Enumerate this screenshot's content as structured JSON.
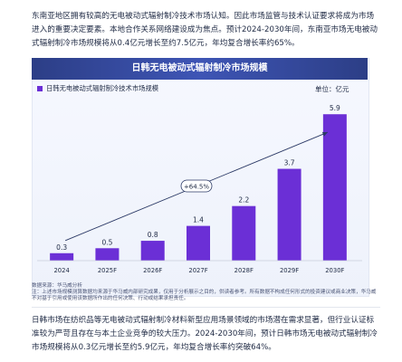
{
  "intro_text": "东南亚地区拥有较高的无电被动式辐射制冷技术市场认知。因此市场监管与技术认证要求将成为市场进入的重要决定要素。本地合作关系网络建设成为焦点。预计2024-2030年间，东南亚市场无电被动式辐射制冷市场规模将从0.4亿元增长至约7.5亿元，年均复合增长率约65%。",
  "chart_data": {
    "type": "bar",
    "title": "日韩无电被动式辐射制冷市场规模",
    "legend": [
      "日韩无电被动式辐射制冷技术市场规模"
    ],
    "unit": "单位：亿元",
    "categories": [
      "2024",
      "2025F",
      "2026F",
      "2027F",
      "2028F",
      "2029F",
      "2030F"
    ],
    "series": [
      {
        "name": "日韩无电被动式辐射制冷技术市场规模",
        "values": [
          0.3,
          0.5,
          0.8,
          1.4,
          2.2,
          3.7,
          5.9
        ]
      }
    ],
    "annotation": "+64.5%",
    "ylim": [
      0,
      6.2
    ],
    "bar_color": "#6b2fd6",
    "grid": false
  },
  "source_text": "数据来源：华马威分析",
  "note_text": "注：上述市场规模测算数据均来源于华马威内部研究成果，仅用于分析展示之目的，供读者参考。所有数据不构成任何形式的投资建议或商业决策，华马威不对基于引用或使用该数据所作出的任何决策、行动或结果承担责任。",
  "outro_text": "日韩市场在纺织品等无电被动式辐射制冷材料新型应用场景领域的市场潜在需求显著，但行业认证标准较为严苛且存在与本土企业竞争的较大压力。2024-2030年间，预计日韩市场无电被动式辐射制冷市场规模将从0.3亿元增长至约5.9亿元，年均复合增长率约突破64%。"
}
